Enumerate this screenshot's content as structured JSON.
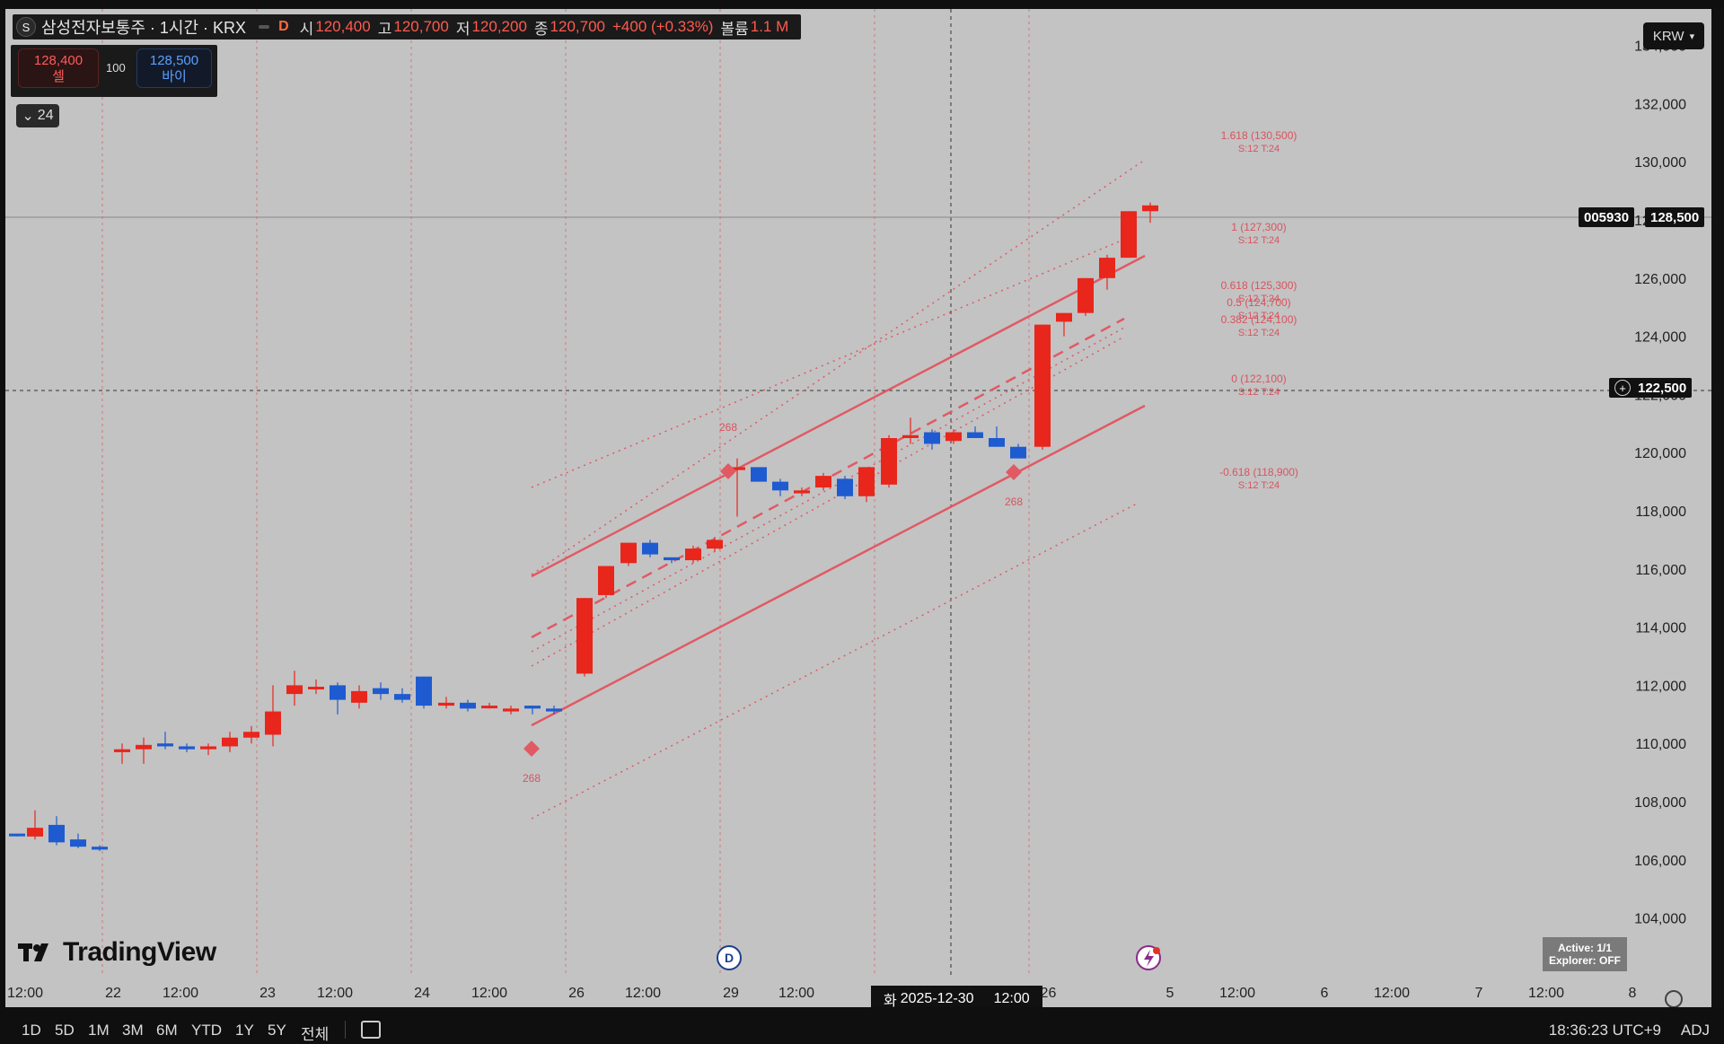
{
  "legend": {
    "symbol_icon": "S",
    "title": "삼성전자보통주 · 1시간 · KRX",
    "d_badge": "D",
    "open_label": "시",
    "open": "120,400",
    "high_label": "고",
    "high": "120,700",
    "low_label": "저",
    "low": "120,200",
    "close_label": "종",
    "close": "120,700",
    "change": "+400 (+0.33%)",
    "volume_label": "볼륨",
    "volume": "1.1 M",
    "up_color": "#ff5a4e"
  },
  "trade": {
    "sell_price": "128,400",
    "sell_label": "셀",
    "qty": "100",
    "buy_price": "128,500",
    "buy_label": "바이"
  },
  "collapse": {
    "icon": "chevron-down-icon",
    "label": "24"
  },
  "currency": "KRW",
  "price_axis": [
    "134,000",
    "132,000",
    "130,000",
    "128,000",
    "126,000",
    "124,000",
    "122,000",
    "120,000",
    "118,000",
    "116,000",
    "114,000",
    "112,000",
    "110,000",
    "108,000",
    "106,000",
    "104,000"
  ],
  "ticker_tag": "005930",
  "last_price": "128,500",
  "crosshair_price": "122,500",
  "time_axis": [
    "12:00",
    "22",
    "12:00",
    "23",
    "12:00",
    "24",
    "12:00",
    "26",
    "12:00",
    "29",
    "12:00",
    "026",
    "5",
    "12:00",
    "6",
    "12:00",
    "7",
    "12:00",
    "8"
  ],
  "crosshair_time": {
    "day": "화",
    "date": "2025-12-30",
    "time": "12:00"
  },
  "fib_levels": [
    {
      "ratio": "1.618",
      "price": "130,500",
      "sub": "S:12 T:24"
    },
    {
      "ratio": "1",
      "price": "127,300",
      "sub": "S:12 T:24"
    },
    {
      "ratio": "0.618",
      "price": "125,300",
      "sub": "S:12 T:24"
    },
    {
      "ratio": "0.5",
      "price": "124,700",
      "sub": "S:12 T:24"
    },
    {
      "ratio": "0.382",
      "price": "124,100",
      "sub": "S:12 T:24"
    },
    {
      "ratio": "0",
      "price": "122,100",
      "sub": "S:12 T:24"
    },
    {
      "ratio": "-0.618",
      "price": "118,900",
      "sub": "S:12 T:24"
    }
  ],
  "pivot_labels": [
    "268",
    "268",
    "268"
  ],
  "logo_text": "TradingView",
  "status": {
    "line1": "Active: 1/1",
    "line2": "Explorer: OFF"
  },
  "bottom_bar": {
    "timeframes": [
      "1D",
      "5D",
      "1M",
      "3M",
      "6M",
      "YTD",
      "1Y",
      "5Y",
      "전체"
    ],
    "clock": "18:36:23 UTC+9",
    "adj": "ADJ"
  },
  "colors": {
    "up": "#e8261c",
    "down": "#1e5bd0",
    "channel": "#e05a64",
    "chart_bg": "#c3c3c3"
  },
  "chart_data": {
    "type": "candlestick",
    "title": "삼성전자보통주 · 1시간 · KRX",
    "ylim": [
      103000,
      135000
    ],
    "y_ticks": [
      134000,
      132000,
      130000,
      128000,
      126000,
      124000,
      122000,
      120000,
      118000,
      116000,
      114000,
      112000,
      110000,
      108000,
      106000,
      104000
    ],
    "candles": [
      {
        "o": 106900,
        "h": 106900,
        "l": 106800,
        "c": 106850
      },
      {
        "o": 106800,
        "h": 107700,
        "l": 106700,
        "c": 107100
      },
      {
        "o": 107200,
        "h": 107500,
        "l": 106500,
        "c": 106600
      },
      {
        "o": 106700,
        "h": 106900,
        "l": 106400,
        "c": 106450
      },
      {
        "o": 106450,
        "h": 106500,
        "l": 106300,
        "c": 106350
      },
      {
        "o": 109700,
        "h": 110000,
        "l": 109300,
        "c": 109800
      },
      {
        "o": 109800,
        "h": 110200,
        "l": 109300,
        "c": 109950
      },
      {
        "o": 110000,
        "h": 110400,
        "l": 109800,
        "c": 109900
      },
      {
        "o": 109900,
        "h": 110000,
        "l": 109700,
        "c": 109800
      },
      {
        "o": 109800,
        "h": 110000,
        "l": 109600,
        "c": 109900
      },
      {
        "o": 109900,
        "h": 110400,
        "l": 109700,
        "c": 110200
      },
      {
        "o": 110200,
        "h": 110600,
        "l": 110000,
        "c": 110400
      },
      {
        "o": 110300,
        "h": 112000,
        "l": 109900,
        "c": 111100
      },
      {
        "o": 111700,
        "h": 112500,
        "l": 111300,
        "c": 112000
      },
      {
        "o": 111900,
        "h": 112200,
        "l": 111700,
        "c": 111950
      },
      {
        "o": 112000,
        "h": 112100,
        "l": 111000,
        "c": 111500
      },
      {
        "o": 111400,
        "h": 112000,
        "l": 111200,
        "c": 111800
      },
      {
        "o": 111900,
        "h": 112100,
        "l": 111500,
        "c": 111700
      },
      {
        "o": 111700,
        "h": 111900,
        "l": 111400,
        "c": 111500
      },
      {
        "o": 112300,
        "h": 112300,
        "l": 111200,
        "c": 111300
      },
      {
        "o": 111300,
        "h": 111600,
        "l": 111200,
        "c": 111400
      },
      {
        "o": 111400,
        "h": 111500,
        "l": 111100,
        "c": 111200
      },
      {
        "o": 111250,
        "h": 111400,
        "l": 111200,
        "c": 111300
      },
      {
        "o": 111100,
        "h": 111300,
        "l": 111000,
        "c": 111200
      },
      {
        "o": 111300,
        "h": 111300,
        "l": 111000,
        "c": 111200
      },
      {
        "o": 111200,
        "h": 111300,
        "l": 111000,
        "c": 111100
      },
      {
        "o": 112400,
        "h": 115000,
        "l": 112300,
        "c": 115000
      },
      {
        "o": 115100,
        "h": 116100,
        "l": 115000,
        "c": 116100
      },
      {
        "o": 116200,
        "h": 116900,
        "l": 116100,
        "c": 116900
      },
      {
        "o": 116900,
        "h": 117000,
        "l": 116400,
        "c": 116500
      },
      {
        "o": 116400,
        "h": 116400,
        "l": 116200,
        "c": 116300
      },
      {
        "o": 116300,
        "h": 116800,
        "l": 116200,
        "c": 116700
      },
      {
        "o": 116700,
        "h": 117100,
        "l": 116600,
        "c": 117000
      },
      {
        "o": 119400,
        "h": 119800,
        "l": 117800,
        "c": 119500
      },
      {
        "o": 119500,
        "h": 119500,
        "l": 119000,
        "c": 119000
      },
      {
        "o": 119000,
        "h": 119100,
        "l": 118500,
        "c": 118700
      },
      {
        "o": 118600,
        "h": 118800,
        "l": 118500,
        "c": 118700
      },
      {
        "o": 118800,
        "h": 119300,
        "l": 118700,
        "c": 119200
      },
      {
        "o": 119100,
        "h": 119200,
        "l": 118400,
        "c": 118500
      },
      {
        "o": 118500,
        "h": 119500,
        "l": 118300,
        "c": 119500
      },
      {
        "o": 118900,
        "h": 120600,
        "l": 118800,
        "c": 120500
      },
      {
        "o": 120500,
        "h": 121200,
        "l": 120300,
        "c": 120600
      },
      {
        "o": 120700,
        "h": 120800,
        "l": 120100,
        "c": 120300
      },
      {
        "o": 120400,
        "h": 120800,
        "l": 120300,
        "c": 120700
      },
      {
        "o": 120700,
        "h": 120900,
        "l": 120500,
        "c": 120500
      },
      {
        "o": 120500,
        "h": 120900,
        "l": 120200,
        "c": 120200
      },
      {
        "o": 120200,
        "h": 120300,
        "l": 119800,
        "c": 119800
      },
      {
        "o": 120200,
        "h": 124400,
        "l": 120100,
        "c": 124400
      },
      {
        "o": 124500,
        "h": 124800,
        "l": 124000,
        "c": 124800
      },
      {
        "o": 124800,
        "h": 126000,
        "l": 124700,
        "c": 126000
      },
      {
        "o": 126000,
        "h": 126800,
        "l": 125600,
        "c": 126700
      },
      {
        "o": 126700,
        "h": 128300,
        "l": 126700,
        "c": 128300
      },
      {
        "o": 128300,
        "h": 128600,
        "l": 127900,
        "c": 128500
      }
    ]
  }
}
